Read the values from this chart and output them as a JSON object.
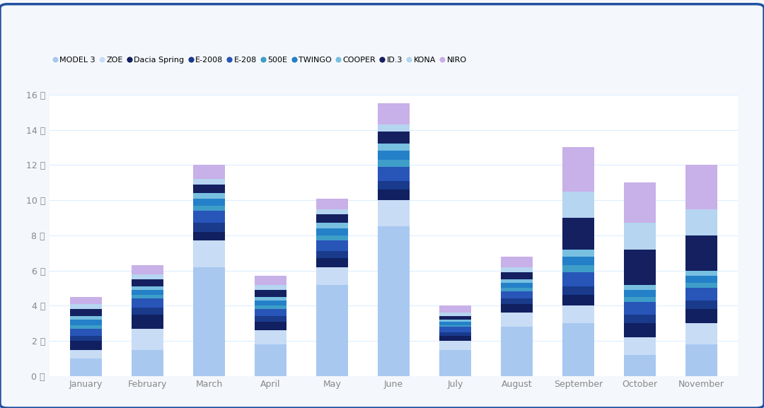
{
  "months": [
    "January",
    "February",
    "March",
    "April",
    "May",
    "June",
    "July",
    "August",
    "September",
    "October",
    "November"
  ],
  "series": {
    "MODEL 3": [
      1.0,
      1.5,
      6.2,
      1.8,
      5.2,
      8.5,
      1.5,
      2.8,
      3.0,
      1.2,
      1.8
    ],
    "ZOE": [
      0.5,
      1.2,
      1.5,
      0.8,
      1.0,
      1.5,
      0.5,
      0.8,
      1.0,
      1.0,
      1.2
    ],
    "Dacia Spring": [
      0.5,
      0.8,
      0.5,
      0.5,
      0.5,
      0.6,
      0.3,
      0.5,
      0.6,
      0.8,
      0.8
    ],
    "E-2008": [
      0.3,
      0.4,
      0.5,
      0.3,
      0.4,
      0.5,
      0.2,
      0.3,
      0.5,
      0.5,
      0.5
    ],
    "E-208": [
      0.4,
      0.5,
      0.7,
      0.4,
      0.6,
      0.8,
      0.3,
      0.4,
      0.8,
      0.7,
      0.7
    ],
    "500E": [
      0.2,
      0.2,
      0.3,
      0.2,
      0.3,
      0.4,
      0.1,
      0.2,
      0.4,
      0.3,
      0.3
    ],
    "TWINGO": [
      0.3,
      0.3,
      0.4,
      0.3,
      0.4,
      0.5,
      0.2,
      0.3,
      0.5,
      0.4,
      0.4
    ],
    "COOPER": [
      0.2,
      0.2,
      0.3,
      0.2,
      0.3,
      0.4,
      0.1,
      0.2,
      0.4,
      0.3,
      0.3
    ],
    "ID.3": [
      0.4,
      0.4,
      0.5,
      0.4,
      0.5,
      0.7,
      0.2,
      0.4,
      1.8,
      2.0,
      2.0
    ],
    "KONA": [
      0.3,
      0.3,
      0.3,
      0.3,
      0.3,
      0.4,
      0.2,
      0.3,
      1.5,
      1.5,
      1.5
    ],
    "NIRO": [
      0.4,
      0.5,
      0.8,
      0.5,
      0.6,
      1.2,
      0.4,
      0.6,
      2.5,
      2.3,
      2.5
    ]
  },
  "colors": {
    "MODEL 3": "#A8C8F0",
    "ZOE": "#C8DCF5",
    "Dacia Spring": "#102060",
    "E-2008": "#1A3A8C",
    "E-208": "#2855B8",
    "500E": "#3E9EC8",
    "TWINGO": "#2480C8",
    "COOPER": "#78C0E0",
    "ID.3": "#142060",
    "KONA": "#B5D5F0",
    "NIRO": "#C8B0E8"
  },
  "ylim": [
    0,
    16
  ],
  "yticks": [
    0,
    2,
    4,
    6,
    8,
    10,
    12,
    14,
    16
  ],
  "ylabel_suffix": "千",
  "background_color": "#F4F7FC",
  "plot_bg_color": "#FFFFFF",
  "grid_color": "#DDEEFF",
  "border_color": "#2050A0",
  "tick_color": "#888888"
}
